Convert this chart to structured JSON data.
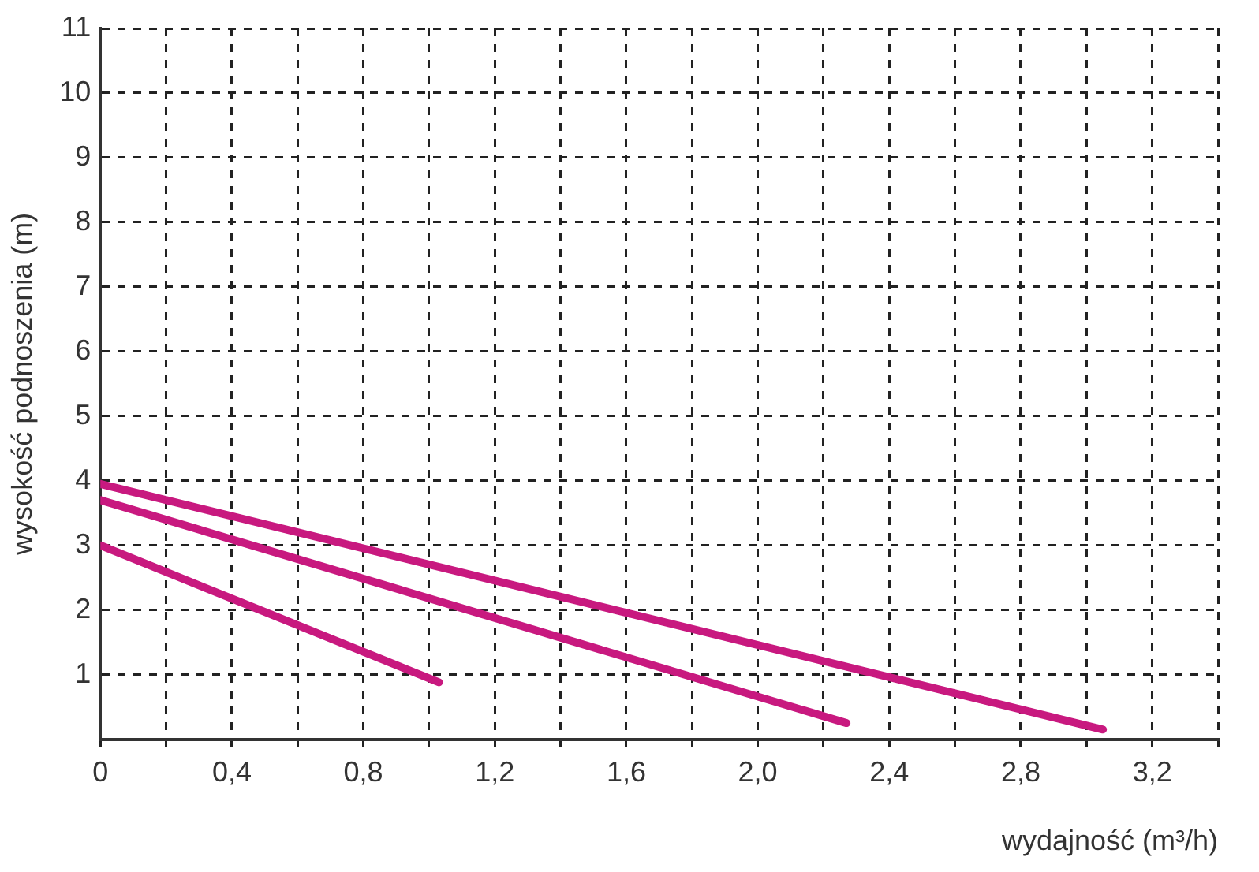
{
  "chart_data": {
    "type": "line",
    "xlabel": "wydajność (m³/h)",
    "ylabel": "wysokość podnoszenia (m)",
    "series": [
      {
        "color": "#c8197f",
        "x": [
          0,
          3.05
        ],
        "values": [
          3.95,
          0.15
        ]
      },
      {
        "color": "#c8197f",
        "x": [
          0,
          2.27
        ],
        "values": [
          3.7,
          0.25
        ]
      },
      {
        "color": "#c8197f",
        "x": [
          0,
          1.03
        ],
        "values": [
          3.0,
          0.88
        ]
      }
    ],
    "xlim": [
      0,
      3.4
    ],
    "xticks": [
      0,
      {
        "value": 0.2,
        "label": null
      },
      {
        "value": 0.4,
        "label": "0,4"
      },
      {
        "value": 0.6,
        "label": null
      },
      {
        "value": 0.8,
        "label": "0,8"
      },
      {
        "value": 1.0,
        "label": null
      },
      {
        "value": 1.2,
        "label": "1,2"
      },
      {
        "value": 1.4,
        "label": null
      },
      {
        "value": 1.6,
        "label": "1,6"
      },
      {
        "value": 1.8,
        "label": null
      },
      {
        "value": 2.0,
        "label": "2,0"
      },
      {
        "value": 2.2,
        "label": null
      },
      {
        "value": 2.4,
        "label": "2,4"
      },
      {
        "value": 2.6,
        "label": null
      },
      {
        "value": 2.8,
        "label": "2,8"
      },
      {
        "value": 3.0,
        "label": null
      },
      {
        "value": 3.2,
        "label": "3,2"
      },
      {
        "value": 3.4,
        "label": null
      }
    ],
    "ylim": [
      0,
      11
    ],
    "yticks": [
      1,
      2,
      3,
      4,
      5,
      6,
      7,
      8,
      9,
      10,
      11
    ],
    "grid": true,
    "legend": false,
    "marker": "none",
    "line_style": "solid"
  }
}
